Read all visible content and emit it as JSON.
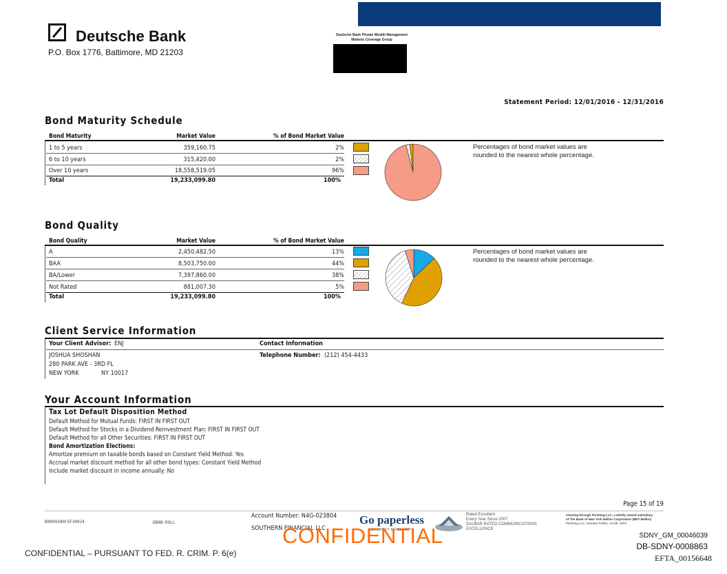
{
  "header": {
    "brand_name": "Deutsche Bank",
    "address": "P.O. Box 1776, Baltimore, MD 21203",
    "pwm_line1": "Deutsche Bank Private Wealth Management",
    "pwm_line2": "Markets Coverage Group",
    "statement_period": "Statement Period: 12/01/2016 - 12/31/2016"
  },
  "colors": {
    "brand_blue": "#0b3a7a",
    "slice_gold": "#e0a000",
    "slice_salmon": "#f59b86",
    "slice_blue": "#16a9e6",
    "slice_hatch": "#ffffff",
    "confidential_orange": "#ff6a00"
  },
  "maturity": {
    "title": "Bond Maturity Schedule",
    "col_label": "Bond Maturity",
    "col_value": "Market Value",
    "col_pct": "% of Bond Market Value",
    "rows": [
      {
        "label": "1 to 5 years",
        "value": "359,160.75",
        "pct": "2%",
        "swatch": "gold"
      },
      {
        "label": "6 to 10 years",
        "value": "315,420.00",
        "pct": "2%",
        "swatch": "hatch"
      },
      {
        "label": "Over 10 years",
        "value": "18,558,519.05",
        "pct": "96%",
        "swatch": "salmon"
      }
    ],
    "total_label": "Total",
    "total_value": "19,233,099.80",
    "total_pct": "100%",
    "note_line1": "Percentages of bond market values are",
    "note_line2": "rounded to the nearest whole percentage."
  },
  "quality": {
    "title": "Bond Quality",
    "col_label": "Bond Quality",
    "col_value": "Market Value",
    "col_pct": "% of Bond Market Value",
    "rows": [
      {
        "label": "A",
        "value": "2,450,482.50",
        "pct": "13%",
        "swatch": "blue"
      },
      {
        "label": "BAA",
        "value": "8,503,750.00",
        "pct": "44%",
        "swatch": "gold"
      },
      {
        "label": "BA/Lower",
        "value": "7,397,860.00",
        "pct": "38%",
        "swatch": "hatch"
      },
      {
        "label": "Not Rated",
        "value": "881,007.30",
        "pct": "5%",
        "swatch": "salmon"
      }
    ],
    "total_label": "Total",
    "total_value": "19,233,099.80",
    "total_pct": "100%",
    "note_line1": "Percentages of bond market values are",
    "note_line2": "rounded to the nearest whole percentage."
  },
  "chart_data": [
    {
      "type": "pie",
      "categories": [
        "1 to 5 years",
        "6 to 10 years",
        "Over 10 years"
      ],
      "values": [
        2,
        2,
        96
      ]
    },
    {
      "type": "pie",
      "categories": [
        "A",
        "BAA",
        "BA/Lower",
        "Not Rated"
      ],
      "values": [
        13,
        44,
        38,
        5
      ]
    }
  ],
  "client_service": {
    "title": "Client Service Information",
    "advisor_label": "Your Client Advisor:",
    "advisor_code": "ENJ",
    "advisor_name": "JOSHUA SHOSHAN",
    "address1": "280 PARK AVE - 3RD FL",
    "city": "NEW YORK",
    "state_zip": "NY 10017",
    "contact_label": "Contact Information",
    "phone_label": "Telephone Number:",
    "phone": "(212) 454-4433"
  },
  "account_info": {
    "title": "Your Account Information",
    "tax_lot_heading": "Tax Lot Default Disposition Method",
    "tax_lines": [
      "Default Method for Mutual Funds: FIRST IN FIRST OUT",
      "Default Method for Stocks in a Dividend Reinvestment Plan: FIRST IN FIRST OUT",
      "Default Method for all Other Securities: FIRST IN FIRST OUT"
    ],
    "amort_heading": "Bond Amortization Elections:",
    "amort_lines": [
      "Amortize premium on taxable bonds based on Constant Yield Method: Yes",
      "Accrual market discount method for all other bond types: Constant Yield Method",
      "Include market discount in income annually: No"
    ]
  },
  "footer": {
    "page": "Page 15 of 19",
    "code1": "B0099380CSF30024",
    "code2": "DBAB-ROLL",
    "account_number": "Account Number: N4G-023804",
    "account_name": "SOUTHERN FINANCIAL LLC",
    "go_paperless": "Go paperless",
    "go_paperless_sub": "ASK ABOUT E-DELIVERY",
    "dalbar1": "Rated Excellent",
    "dalbar2": "Every Year Since 2007",
    "dalbar3": "DALBAR RATED COMMUNICATIONS",
    "dalbar4": "EXCELLENCE",
    "clearing1": "Clearing through Pershing LLC, a wholly owned subsidiary",
    "clearing2": "of The Bank of New York Mellon Corporation (BNY Mellon)",
    "clearing3": "Pershing LLC, member FINRA, NYSE, SIPC",
    "confidential_stamp": "CONFIDENTIAL",
    "confidential_left": "CONFIDENTIAL – PURSUANT TO FED. R. CRIM. P. 6(e)",
    "bates1": "SDNY_GM_00046039",
    "bates2": "DB-SDNY-0008863",
    "bates3": "EFTA_00156648"
  }
}
